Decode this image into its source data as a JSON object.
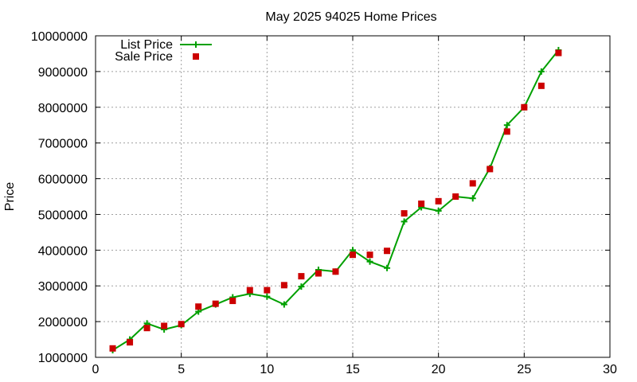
{
  "chart_data": {
    "type": "line",
    "title": "May 2025 94025 Home Prices",
    "xlabel": "",
    "ylabel": "Price",
    "xlim": [
      0,
      30
    ],
    "ylim": [
      1000000,
      10000000
    ],
    "xticks": [
      "0",
      "5",
      "10",
      "15",
      "20",
      "25",
      "30"
    ],
    "yticks": [
      "1000000",
      "2000000",
      "3000000",
      "4000000",
      "5000000",
      "6000000",
      "7000000",
      "8000000",
      "9000000",
      "10000000"
    ],
    "grid": true,
    "legend_position": "top-left",
    "x": [
      1,
      2,
      3,
      4,
      5,
      6,
      7,
      8,
      9,
      10,
      11,
      12,
      13,
      14,
      15,
      16,
      17,
      18,
      19,
      20,
      21,
      22,
      23,
      24,
      25,
      26,
      27
    ],
    "series": [
      {
        "name": "List Price",
        "style": "line-with-plus-markers",
        "color": "#00a000",
        "values": [
          1200000,
          1500000,
          1950000,
          1780000,
          1900000,
          2280000,
          2480000,
          2680000,
          2780000,
          2700000,
          2480000,
          2980000,
          3450000,
          3400000,
          4000000,
          3680000,
          3500000,
          4800000,
          5200000,
          5100000,
          5500000,
          5450000,
          6300000,
          7500000,
          8000000,
          9000000,
          9600000
        ]
      },
      {
        "name": "Sale Price",
        "style": "square-markers",
        "color": "#cc0000",
        "values": [
          1250000,
          1420000,
          1820000,
          1880000,
          1930000,
          2420000,
          2500000,
          2580000,
          2880000,
          2880000,
          3020000,
          3270000,
          3350000,
          3400000,
          3870000,
          3870000,
          3980000,
          5030000,
          5300000,
          5370000,
          5500000,
          5870000,
          6270000,
          7320000,
          8000000,
          8600000,
          9520000
        ]
      }
    ]
  }
}
